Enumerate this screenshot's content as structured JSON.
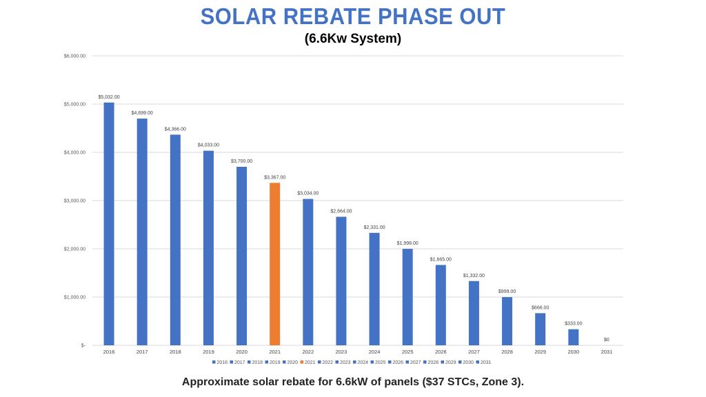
{
  "header": {
    "title": "SOLAR REBATE PHASE OUT",
    "subtitle": "(6.6Kw System)"
  },
  "footer": {
    "caption": "Approximate solar rebate for 6.6kW of panels ($37 STCs, Zone 3)."
  },
  "colors": {
    "title": "#4472c4",
    "bar": "#4472c4",
    "highlight": "#ed7d31"
  },
  "chart_data": {
    "type": "bar",
    "categories": [
      "2016",
      "2017",
      "2018",
      "2019",
      "2020",
      "2021",
      "2022",
      "2023",
      "2024",
      "2025",
      "2026",
      "2027",
      "2028",
      "2029",
      "2030",
      "2031"
    ],
    "values": [
      5032,
      4699,
      4366,
      4033,
      3700,
      3367,
      3034,
      2664,
      2331,
      1998,
      1665,
      1332,
      999,
      666,
      333,
      0
    ],
    "data_labels": [
      "$5,032.00",
      "$4,699.00",
      "$4,366.00",
      "$4,033.00",
      "$3,700.00",
      "$3,367.00",
      "$3,034.00",
      "$2,664.00",
      "$2,331.00",
      "$1,998.00",
      "$1,665.00",
      "$1,332.00",
      "$999.00",
      "$666.00",
      "$333.00",
      "$0"
    ],
    "highlight_category": "2021",
    "ylim": [
      0,
      6000
    ],
    "y_ticks": [
      0,
      1000,
      2000,
      3000,
      4000,
      5000,
      6000
    ],
    "y_tick_labels": [
      "$-",
      "$1,000.00",
      "$2,000.00",
      "$3,000.00",
      "$4,000.00",
      "$5,000.00",
      "$6,000.00"
    ],
    "grid": true,
    "legend": {
      "placement": "bottom",
      "entries": [
        "2016",
        "2017",
        "2018",
        "2019",
        "2020",
        "2021",
        "2022",
        "2023",
        "2024",
        "2025",
        "2026",
        "2027",
        "2028",
        "2029",
        "2030",
        "2031"
      ]
    }
  }
}
